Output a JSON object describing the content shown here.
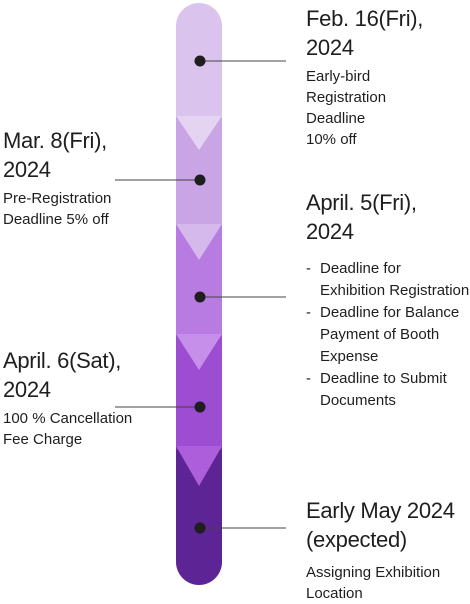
{
  "colors": {
    "bands": [
      "#dac3ec",
      "#caa5e6",
      "#b77be2",
      "#9d4dd1",
      "#7a2fb4",
      "#5d2495"
    ],
    "arrows": [
      "#e5d3f2",
      "#d5b8ec",
      "#c690ea",
      "#ad5fdb",
      "#8a3cc1"
    ],
    "dot": "#1e1e1e",
    "line": "#444444"
  },
  "events": [
    {
      "date_line1": "Feb. 16(Fri),",
      "date_line2": "2024",
      "description": [
        "Early-bird",
        "Registration",
        "Deadline",
        "10% off"
      ]
    },
    {
      "date_line1": "Mar. 8(Fri),",
      "date_line2": "2024",
      "description": [
        "Pre-Registration",
        "Deadline 5% off"
      ]
    },
    {
      "date_line1": "April. 5(Fri),",
      "date_line2": "2024",
      "items": [
        "Deadline for Exhibition Registration",
        "Deadline for Balance Payment of Booth Expense",
        "Deadline to Submit Documents"
      ]
    },
    {
      "date_line1": "April. 6(Sat),",
      "date_line2": "2024",
      "description": [
        "100 % Cancellation",
        "Fee Charge"
      ]
    },
    {
      "date_line1": "Early May 2024",
      "date_line2": "(expected)",
      "description": [
        "Assigning Exhibition",
        "Location"
      ]
    }
  ]
}
